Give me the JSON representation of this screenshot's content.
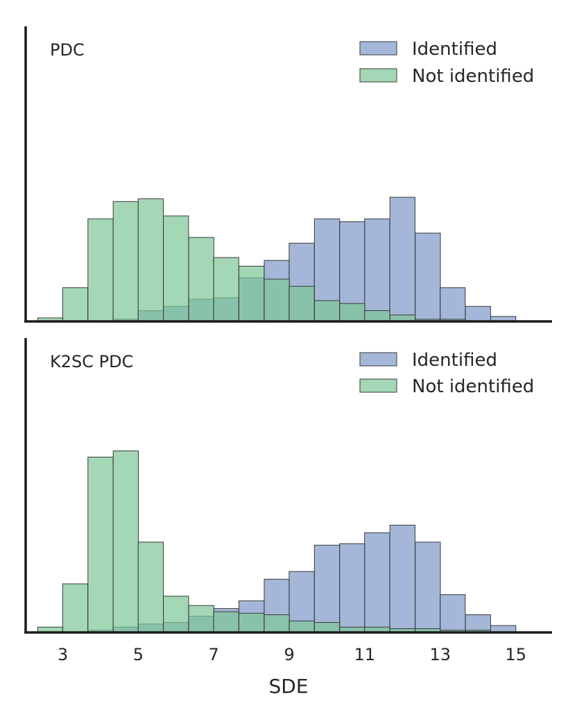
{
  "colors": {
    "identified": "#7e98c9",
    "not_identified": "#7ec695",
    "axis": "#1a1a1a",
    "bar_edge": "#3a3a3a"
  },
  "chart_data": [
    {
      "type": "bar",
      "title": "PDC",
      "xlabel": "",
      "ylabel": "",
      "bin_width": 0.667,
      "xlim": [
        2,
        16
      ],
      "ylim": [
        0,
        205
      ],
      "legend": "top-right",
      "grid": false,
      "series": [
        {
          "name": "Identified",
          "x": [
            4.67,
            5.33,
            6.0,
            6.67,
            7.33,
            8.0,
            8.67,
            9.33,
            10.0,
            10.67,
            11.33,
            12.0,
            12.67,
            13.33,
            14.0,
            14.67
          ],
          "values": [
            1,
            7,
            10,
            15,
            16,
            30,
            42,
            54,
            71,
            69,
            71,
            86,
            61,
            23,
            10,
            3
          ]
        },
        {
          "name": "Not identified",
          "x": [
            2.67,
            3.33,
            4.0,
            4.67,
            5.33,
            6.0,
            6.67,
            7.33,
            8.0,
            8.67,
            9.33,
            10.0,
            10.67,
            11.33,
            12.0,
            12.67,
            13.33,
            14.0
          ],
          "values": [
            2,
            23,
            71,
            83,
            85,
            73,
            58,
            44,
            38,
            29,
            24,
            14,
            12,
            7,
            4,
            1,
            1,
            0
          ]
        }
      ]
    },
    {
      "type": "bar",
      "title": "K2SC PDC",
      "xlabel": "SDE",
      "ylabel": "",
      "bin_width": 0.667,
      "xlim": [
        2,
        16
      ],
      "ylim": [
        0,
        190
      ],
      "legend": "top-right",
      "grid": false,
      "x_ticks": [
        "3",
        "5",
        "7",
        "9",
        "11",
        "13",
        "15"
      ],
      "series": [
        {
          "name": "Identified",
          "x": [
            4.0,
            4.67,
            5.33,
            6.0,
            6.67,
            7.33,
            8.0,
            8.67,
            9.33,
            10.0,
            10.67,
            11.33,
            12.0,
            12.67,
            13.33,
            14.0,
            14.67,
            15.33
          ],
          "values": [
            1,
            3,
            5,
            6,
            10,
            15,
            20,
            34,
            39,
            56,
            57,
            64,
            69,
            58,
            24,
            11,
            4,
            0
          ]
        },
        {
          "name": "Not identified",
          "x": [
            2.67,
            3.33,
            4.0,
            4.67,
            5.33,
            6.0,
            6.67,
            7.33,
            8.0,
            8.67,
            9.33,
            10.0,
            10.67,
            11.33,
            12.0,
            12.67,
            13.33,
            14.0,
            14.67
          ],
          "values": [
            3,
            31,
            113,
            117,
            58,
            23,
            17,
            13,
            12,
            11,
            7,
            6,
            3,
            3,
            2,
            2,
            1,
            1,
            0
          ]
        }
      ]
    }
  ]
}
